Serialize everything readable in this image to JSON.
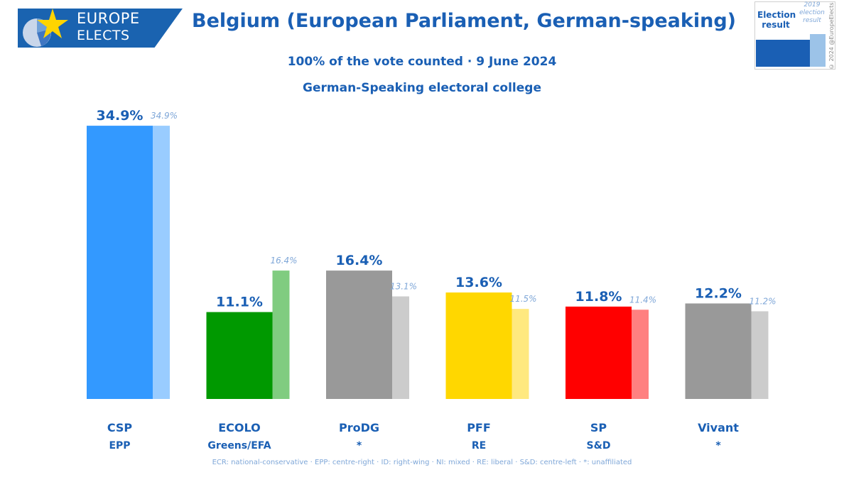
{
  "header": {
    "logo_line1": "EUROPE",
    "logo_line2": "ELECTS",
    "title": "Belgium (European Parliament, German-speaking)",
    "subtitle_line1": "100% of the vote counted · 9 June 2024",
    "subtitle_line2": "German-Speaking electoral college"
  },
  "legend": {
    "current_label": "Election result",
    "previous_label": "2019 election result",
    "copyright": "© 2024 @EuropeElects"
  },
  "footnote": "ECR: national-conservative · EPP: centre-right · ID: right-wing · NI: mixed · RE: liberal · S&D: centre-left · *: unaffiliated",
  "chart_data": {
    "type": "bar",
    "categories": [
      "CSP",
      "ECOLO",
      "ProDG",
      "PFF",
      "SP",
      "Vivant"
    ],
    "groups": [
      "EPP",
      "Greens/EFA",
      "*",
      "RE",
      "S&D",
      "*"
    ],
    "series": [
      {
        "name": "Election result",
        "values": [
          34.9,
          11.1,
          16.4,
          13.6,
          11.8,
          12.2
        ]
      },
      {
        "name": "2019 election result",
        "values": [
          34.9,
          16.4,
          13.1,
          11.5,
          11.4,
          11.2
        ]
      }
    ],
    "labels_current": [
      "34.9%",
      "11.1%",
      "16.4%",
      "13.6%",
      "11.8%",
      "12.2%"
    ],
    "labels_previous": [
      "34.9%",
      "16.4%",
      "13.1%",
      "11.5%",
      "11.4%",
      "11.2%"
    ],
    "colors_current": [
      "#3399ff",
      "#009900",
      "#999999",
      "#ffd700",
      "#ff0000",
      "#999999"
    ],
    "colors_previous": [
      "#99ccff",
      "#80cc80",
      "#cccccc",
      "#ffe97f",
      "#ff8080",
      "#cccccc"
    ],
    "ylim": [
      0,
      35
    ],
    "grid": false,
    "legend_position": "top-right"
  }
}
